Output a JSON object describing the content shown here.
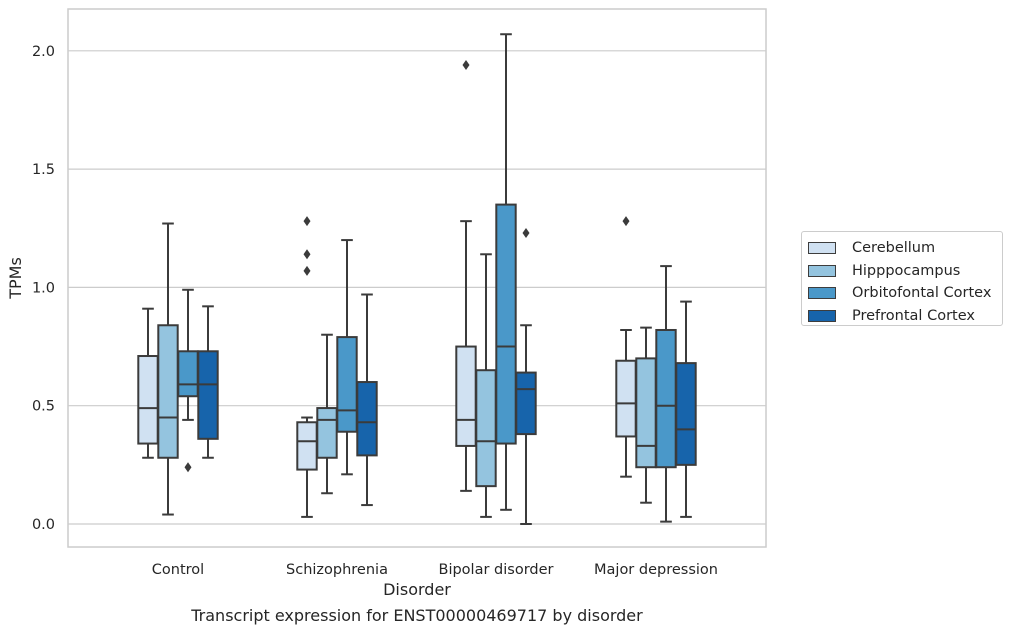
{
  "chart_data": {
    "type": "box",
    "xlabel": "Disorder",
    "ylabel": "TPMs",
    "caption": "Transcript expression for ENST00000469717 by disorder",
    "ylim": [
      -0.1,
      2.18
    ],
    "yticks": [
      0.0,
      0.5,
      1.0,
      1.5,
      2.0
    ],
    "ytick_labels": [
      "0.0",
      "0.5",
      "1.0",
      "1.5",
      "2.0"
    ],
    "grid": "horizontal",
    "legend_position": "right",
    "categories": [
      "Control",
      "Schizophrenia",
      "Bipolar disorder",
      "Major depression"
    ],
    "series": [
      {
        "name": "Cerebellum",
        "color": "#d0e1f2",
        "boxes": [
          {
            "whislo": 0.28,
            "q1": 0.34,
            "med": 0.49,
            "q3": 0.71,
            "whishi": 0.91,
            "fliers": []
          },
          {
            "whislo": 0.03,
            "q1": 0.23,
            "med": 0.35,
            "q3": 0.43,
            "whishi": 0.45,
            "fliers": [
              1.07,
              1.14,
              1.28
            ]
          },
          {
            "whislo": 0.14,
            "q1": 0.33,
            "med": 0.44,
            "q3": 0.75,
            "whishi": 1.28,
            "fliers": [
              1.94
            ]
          },
          {
            "whislo": 0.2,
            "q1": 0.37,
            "med": 0.51,
            "q3": 0.69,
            "whishi": 0.82,
            "fliers": [
              1.28
            ]
          }
        ]
      },
      {
        "name": "Hipppocampus",
        "color": "#94c4df",
        "boxes": [
          {
            "whislo": 0.04,
            "q1": 0.28,
            "med": 0.45,
            "q3": 0.84,
            "whishi": 1.27,
            "fliers": []
          },
          {
            "whislo": 0.13,
            "q1": 0.28,
            "med": 0.44,
            "q3": 0.49,
            "whishi": 0.8,
            "fliers": []
          },
          {
            "whislo": 0.03,
            "q1": 0.16,
            "med": 0.35,
            "q3": 0.65,
            "whishi": 1.14,
            "fliers": []
          },
          {
            "whislo": 0.09,
            "q1": 0.24,
            "med": 0.33,
            "q3": 0.7,
            "whishi": 0.83,
            "fliers": []
          }
        ]
      },
      {
        "name": "Orbitofontal Cortex",
        "color": "#4a98c9",
        "boxes": [
          {
            "whislo": 0.44,
            "q1": 0.54,
            "med": 0.59,
            "q3": 0.73,
            "whishi": 0.99,
            "fliers": [
              0.24
            ]
          },
          {
            "whislo": 0.21,
            "q1": 0.39,
            "med": 0.48,
            "q3": 0.79,
            "whishi": 1.2,
            "fliers": []
          },
          {
            "whislo": 0.06,
            "q1": 0.34,
            "med": 0.75,
            "q3": 1.35,
            "whishi": 2.07,
            "fliers": []
          },
          {
            "whislo": 0.01,
            "q1": 0.24,
            "med": 0.5,
            "q3": 0.82,
            "whishi": 1.09,
            "fliers": []
          }
        ]
      },
      {
        "name": "Prefrontal Cortex",
        "color": "#1764ab",
        "boxes": [
          {
            "whislo": 0.28,
            "q1": 0.36,
            "med": 0.59,
            "q3": 0.73,
            "whishi": 0.92,
            "fliers": []
          },
          {
            "whislo": 0.08,
            "q1": 0.29,
            "med": 0.43,
            "q3": 0.6,
            "whishi": 0.97,
            "fliers": []
          },
          {
            "whislo": 0.0,
            "q1": 0.38,
            "med": 0.57,
            "q3": 0.64,
            "whishi": 0.84,
            "fliers": [
              1.23
            ]
          },
          {
            "whislo": 0.03,
            "q1": 0.25,
            "med": 0.4,
            "q3": 0.68,
            "whishi": 0.94,
            "fliers": []
          }
        ]
      }
    ]
  }
}
